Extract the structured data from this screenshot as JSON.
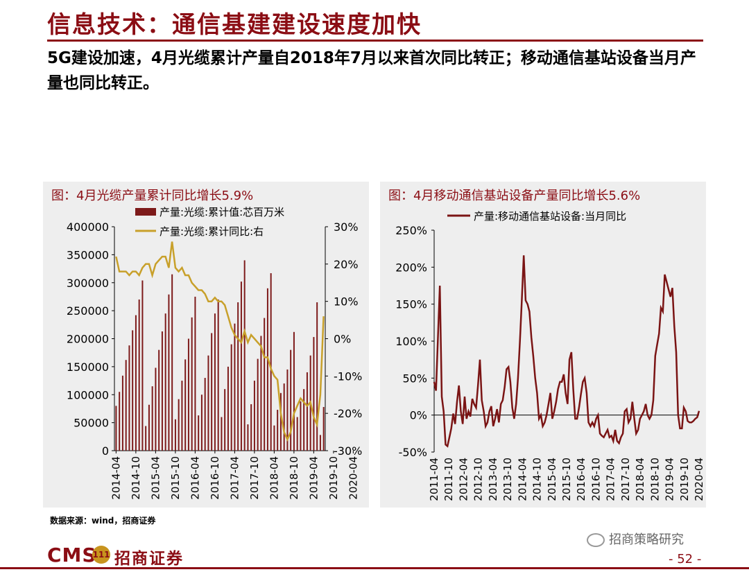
{
  "header": {
    "title": "信息技术：通信基建建设速度加快",
    "subtitle": "5G建设加速，4月光缆累计产量自2018年7月以来首次同比转正；移动通信基站设备当月产量也同比转正。"
  },
  "footer": {
    "source": "数据来源：wind，招商证券",
    "wechat": "招商策略研究",
    "page_number": "- 52 -",
    "logo_cms": "CMS",
    "logo_badge": "111",
    "logo_cn": "招商证券"
  },
  "colors": {
    "brand": "#8b0d14",
    "bar": "#7d1a1a",
    "gold": "#c8a02a",
    "line": "#7a1414",
    "panel_bg": "#eeeeee"
  },
  "chart_data": [
    {
      "type": "bar",
      "title": "图：4月光缆产量累计同比增长5.9%",
      "x_tick_labels": [
        "2014-04",
        "2014-10",
        "2015-04",
        "2015-10",
        "2016-04",
        "2016-10",
        "2017-04",
        "2017-10",
        "2018-04",
        "2018-10",
        "2019-04",
        "2019-10",
        "2020-04"
      ],
      "ylim_left": [
        0,
        400000
      ],
      "yticks_left": [
        "400000",
        "350000",
        "300000",
        "250000",
        "200000",
        "150000",
        "100000",
        "50000",
        "0"
      ],
      "ylim_right": [
        -30,
        30
      ],
      "yticks_right": [
        "30%",
        "20%",
        "10%",
        "0%",
        "-10%",
        "-20%",
        "-30%"
      ],
      "series": [
        {
          "name": "产量:光缆:累计值:芯百万米",
          "type": "bar",
          "axis": "left",
          "values": [
            80000,
            105000,
            134000,
            162000,
            188000,
            215000,
            242000,
            270000,
            304000,
            44000,
            82000,
            115000,
            148000,
            180000,
            213000,
            245000,
            279000,
            315000,
            56000,
            92000,
            125000,
            163000,
            200000,
            238000,
            275000,
            63000,
            100000,
            130000,
            170000,
            210000,
            245000,
            270000,
            60000,
            110000,
            150000,
            190000,
            227000,
            265000,
            302000,
            340000,
            47000,
            83000,
            125000,
            164000,
            205000,
            237000,
            290000,
            317000,
            45000,
            73000,
            103000,
            120000,
            145000,
            180000,
            212000,
            60000,
            88000,
            110000,
            140000,
            170000,
            203000,
            265000,
            28000,
            78000
          ],
          "legend_position": "top"
        },
        {
          "name": "产量:光缆:累计同比:右",
          "type": "line",
          "axis": "right",
          "values": [
            22,
            18,
            18,
            18,
            17,
            18,
            18,
            17,
            19,
            20,
            20,
            17,
            20,
            21,
            22,
            22,
            19,
            26,
            19,
            18,
            19,
            17,
            17,
            15,
            14,
            13,
            13,
            12,
            10,
            10,
            11,
            10,
            10,
            9,
            6,
            3,
            1,
            0,
            -1,
            2,
            -1,
            1,
            0,
            -1,
            -2,
            -5,
            -5,
            -8,
            -10,
            -11,
            -20,
            -25,
            -27,
            -25,
            -20,
            -18,
            -16,
            -17,
            -18,
            -17,
            -21,
            -23,
            -15,
            6
          ]
        }
      ]
    },
    {
      "type": "line",
      "title": "图：4月移动通信基站设备产量同比增长5.6%",
      "x_tick_labels": [
        "2011-04",
        "2011-10",
        "2012-04",
        "2012-10",
        "2013-04",
        "2013-10",
        "2014-04",
        "2014-10",
        "2015-04",
        "2015-10",
        "2016-04",
        "2016-10",
        "2017-04",
        "2017-10",
        "2018-04",
        "2018-10",
        "2019-04",
        "2019-10",
        "2020-04"
      ],
      "ylim": [
        -50,
        250
      ],
      "yticks": [
        "250%",
        "200%",
        "150%",
        "100%",
        "50%",
        "0%",
        "-50%"
      ],
      "series": [
        {
          "name": "产量:移动通信基站设备:当月同比",
          "values": [
            45,
            33,
            105,
            175,
            25,
            5,
            -40,
            -42,
            -30,
            -18,
            2,
            -12,
            18,
            40,
            5,
            -12,
            25,
            -5,
            5,
            -2,
            22,
            15,
            10,
            40,
            75,
            20,
            5,
            -15,
            -10,
            5,
            12,
            -15,
            -5,
            8,
            -10,
            15,
            20,
            38,
            62,
            65,
            45,
            10,
            -5,
            15,
            50,
            100,
            155,
            216,
            155,
            150,
            140,
            105,
            80,
            50,
            30,
            -5,
            0,
            -15,
            -10,
            0,
            15,
            30,
            -5,
            5,
            18,
            35,
            45,
            45,
            55,
            30,
            15,
            75,
            85,
            35,
            -5,
            -5,
            10,
            28,
            45,
            50,
            30,
            -10,
            -15,
            -10,
            -15,
            -5,
            0,
            -25,
            -28,
            -30,
            -25,
            -20,
            -30,
            -28,
            -35,
            -20,
            -35,
            -38,
            -30,
            -25,
            5,
            8,
            -10,
            -5,
            18,
            -5,
            -25,
            -20,
            -5,
            0,
            5,
            15,
            0,
            -5,
            0,
            20,
            80,
            95,
            110,
            145,
            140,
            190,
            180,
            170,
            160,
            172,
            120,
            85,
            0,
            -18,
            -18,
            10,
            5,
            -8,
            -10,
            -10,
            -8,
            -5,
            -3,
            5.6
          ],
          "legend_position": "top"
        }
      ]
    }
  ]
}
